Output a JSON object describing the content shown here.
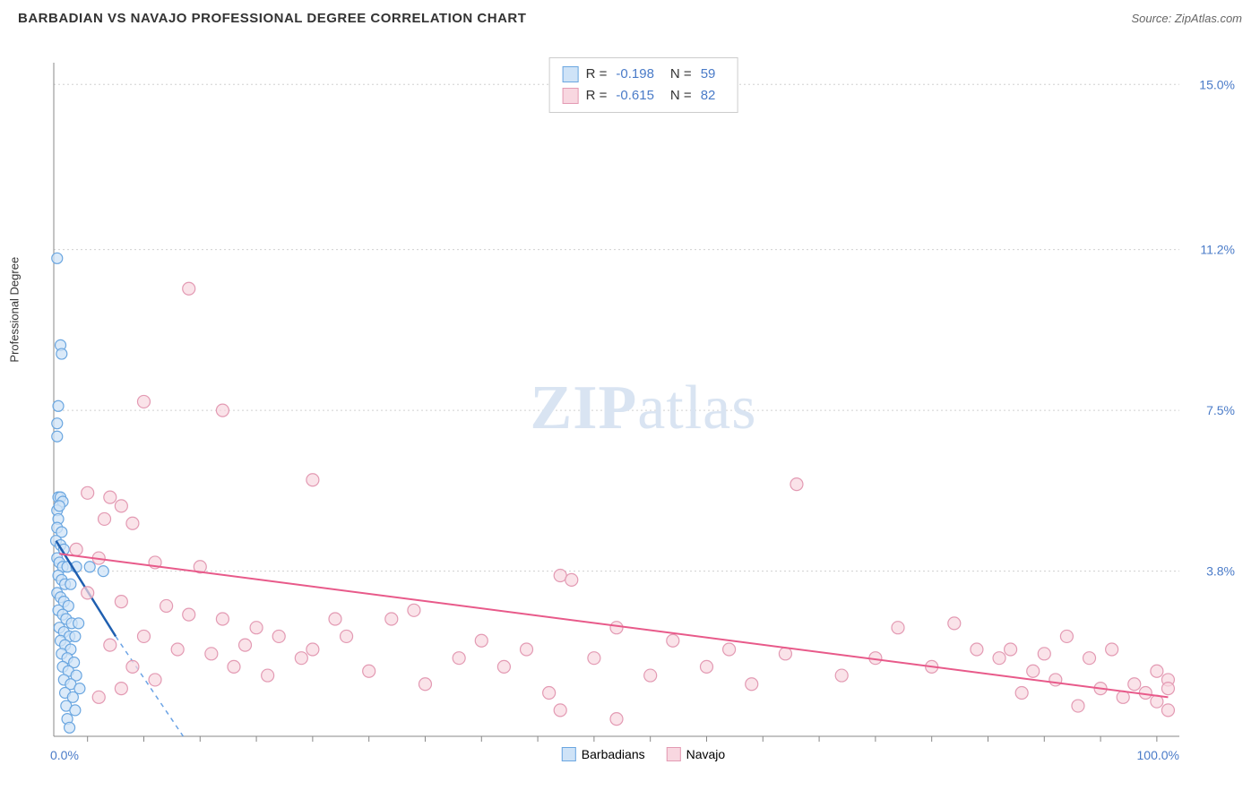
{
  "title": "BARBADIAN VS NAVAJO PROFESSIONAL DEGREE CORRELATION CHART",
  "source": "Source: ZipAtlas.com",
  "ylabel": "Professional Degree",
  "watermark_a": "ZIP",
  "watermark_b": "atlas",
  "chart": {
    "type": "scatter",
    "xlim": [
      0,
      100
    ],
    "ylim": [
      0,
      15.5
    ],
    "y_ticks": [
      {
        "v": 3.8,
        "label": "3.8%"
      },
      {
        "v": 7.5,
        "label": "7.5%"
      },
      {
        "v": 11.2,
        "label": "11.2%"
      },
      {
        "v": 15.0,
        "label": "15.0%"
      }
    ],
    "x_left_label": "0.0%",
    "x_right_label": "100.0%",
    "x_tick_positions": [
      3,
      8,
      13,
      18,
      23,
      28,
      33,
      38,
      43,
      48,
      53,
      58,
      63,
      68,
      73,
      78,
      83,
      88,
      93,
      98
    ],
    "series": [
      {
        "name": "Barbadians",
        "fill": "#cfe3f7",
        "stroke": "#6aa6e0",
        "marker_r": 6,
        "marker_opacity": 0.75,
        "R": "-0.198",
        "N": "59",
        "trend_solid": {
          "x1": 0.2,
          "y1": 4.5,
          "x2": 5.5,
          "y2": 2.3
        },
        "trend_dash": {
          "x1": 5.5,
          "y1": 2.3,
          "x2": 11.5,
          "y2": 0.0
        },
        "points": [
          [
            0.3,
            11.0
          ],
          [
            0.6,
            9.0
          ],
          [
            0.7,
            8.8
          ],
          [
            0.4,
            7.6
          ],
          [
            0.3,
            7.2
          ],
          [
            0.3,
            6.9
          ],
          [
            0.4,
            5.5
          ],
          [
            0.6,
            5.5
          ],
          [
            0.8,
            5.4
          ],
          [
            0.3,
            5.2
          ],
          [
            0.5,
            5.3
          ],
          [
            0.4,
            5.0
          ],
          [
            0.3,
            4.8
          ],
          [
            0.7,
            4.7
          ],
          [
            0.2,
            4.5
          ],
          [
            0.6,
            4.4
          ],
          [
            0.9,
            4.3
          ],
          [
            0.3,
            4.1
          ],
          [
            0.5,
            4.0
          ],
          [
            0.8,
            3.9
          ],
          [
            1.2,
            3.9
          ],
          [
            2.0,
            3.9
          ],
          [
            3.2,
            3.9
          ],
          [
            4.4,
            3.8
          ],
          [
            0.4,
            3.7
          ],
          [
            0.7,
            3.6
          ],
          [
            1.0,
            3.5
          ],
          [
            1.5,
            3.5
          ],
          [
            0.3,
            3.3
          ],
          [
            0.6,
            3.2
          ],
          [
            0.9,
            3.1
          ],
          [
            1.3,
            3.0
          ],
          [
            0.4,
            2.9
          ],
          [
            0.8,
            2.8
          ],
          [
            1.1,
            2.7
          ],
          [
            1.6,
            2.6
          ],
          [
            2.2,
            2.6
          ],
          [
            0.5,
            2.5
          ],
          [
            0.9,
            2.4
          ],
          [
            1.4,
            2.3
          ],
          [
            1.9,
            2.3
          ],
          [
            0.6,
            2.2
          ],
          [
            1.0,
            2.1
          ],
          [
            1.5,
            2.0
          ],
          [
            0.7,
            1.9
          ],
          [
            1.2,
            1.8
          ],
          [
            1.8,
            1.7
          ],
          [
            0.8,
            1.6
          ],
          [
            1.3,
            1.5
          ],
          [
            2.0,
            1.4
          ],
          [
            0.9,
            1.3
          ],
          [
            1.5,
            1.2
          ],
          [
            2.3,
            1.1
          ],
          [
            1.0,
            1.0
          ],
          [
            1.7,
            0.9
          ],
          [
            1.1,
            0.7
          ],
          [
            1.9,
            0.6
          ],
          [
            1.2,
            0.4
          ],
          [
            1.4,
            0.2
          ]
        ]
      },
      {
        "name": "Navajo",
        "fill": "#f8d7e0",
        "stroke": "#e39ab3",
        "marker_r": 7,
        "marker_opacity": 0.7,
        "R": "-0.615",
        "N": "82",
        "trend_solid": {
          "x1": 0.5,
          "y1": 4.2,
          "x2": 99,
          "y2": 0.9
        },
        "points": [
          [
            12,
            10.3
          ],
          [
            8,
            7.7
          ],
          [
            15,
            7.5
          ],
          [
            3,
            5.6
          ],
          [
            5,
            5.5
          ],
          [
            6,
            5.3
          ],
          [
            4.5,
            5.0
          ],
          [
            7,
            4.9
          ],
          [
            23,
            5.9
          ],
          [
            66,
            5.8
          ],
          [
            2,
            4.3
          ],
          [
            4,
            4.1
          ],
          [
            9,
            4.0
          ],
          [
            13,
            3.9
          ],
          [
            45,
            3.7
          ],
          [
            46,
            3.6
          ],
          [
            3,
            3.3
          ],
          [
            6,
            3.1
          ],
          [
            10,
            3.0
          ],
          [
            32,
            2.9
          ],
          [
            12,
            2.8
          ],
          [
            15,
            2.7
          ],
          [
            25,
            2.7
          ],
          [
            30,
            2.7
          ],
          [
            18,
            2.5
          ],
          [
            50,
            2.5
          ],
          [
            75,
            2.5
          ],
          [
            8,
            2.3
          ],
          [
            20,
            2.3
          ],
          [
            38,
            2.2
          ],
          [
            55,
            2.2
          ],
          [
            5,
            2.1
          ],
          [
            11,
            2.0
          ],
          [
            23,
            2.0
          ],
          [
            42,
            2.0
          ],
          [
            60,
            2.0
          ],
          [
            80,
            2.6
          ],
          [
            82,
            2.0
          ],
          [
            85,
            2.0
          ],
          [
            88,
            1.9
          ],
          [
            90,
            2.3
          ],
          [
            92,
            1.8
          ],
          [
            94,
            2.0
          ],
          [
            96,
            1.2
          ],
          [
            97,
            1.0
          ],
          [
            98,
            1.5
          ],
          [
            98,
            0.8
          ],
          [
            99,
            1.3
          ],
          [
            99,
            1.1
          ],
          [
            99,
            0.6
          ],
          [
            95,
            0.9
          ],
          [
            93,
            1.1
          ],
          [
            91,
            0.7
          ],
          [
            89,
            1.3
          ],
          [
            87,
            1.5
          ],
          [
            86,
            1.0
          ],
          [
            84,
            1.8
          ],
          [
            78,
            1.6
          ],
          [
            73,
            1.8
          ],
          [
            70,
            1.4
          ],
          [
            65,
            1.9
          ],
          [
            62,
            1.2
          ],
          [
            58,
            1.6
          ],
          [
            53,
            1.4
          ],
          [
            48,
            1.8
          ],
          [
            44,
            1.0
          ],
          [
            40,
            1.6
          ],
          [
            36,
            1.8
          ],
          [
            33,
            1.2
          ],
          [
            28,
            1.5
          ],
          [
            26,
            2.3
          ],
          [
            22,
            1.8
          ],
          [
            19,
            1.4
          ],
          [
            16,
            1.6
          ],
          [
            14,
            1.9
          ],
          [
            17,
            2.1
          ],
          [
            7,
            1.6
          ],
          [
            9,
            1.3
          ],
          [
            6,
            1.1
          ],
          [
            4,
            0.9
          ],
          [
            45,
            0.6
          ],
          [
            50,
            0.4
          ]
        ]
      }
    ],
    "legend_series": [
      {
        "label": "Barbadians",
        "fill": "#cfe3f7",
        "stroke": "#6aa6e0"
      },
      {
        "label": "Navajo",
        "fill": "#f8d7e0",
        "stroke": "#e39ab3"
      }
    ]
  }
}
